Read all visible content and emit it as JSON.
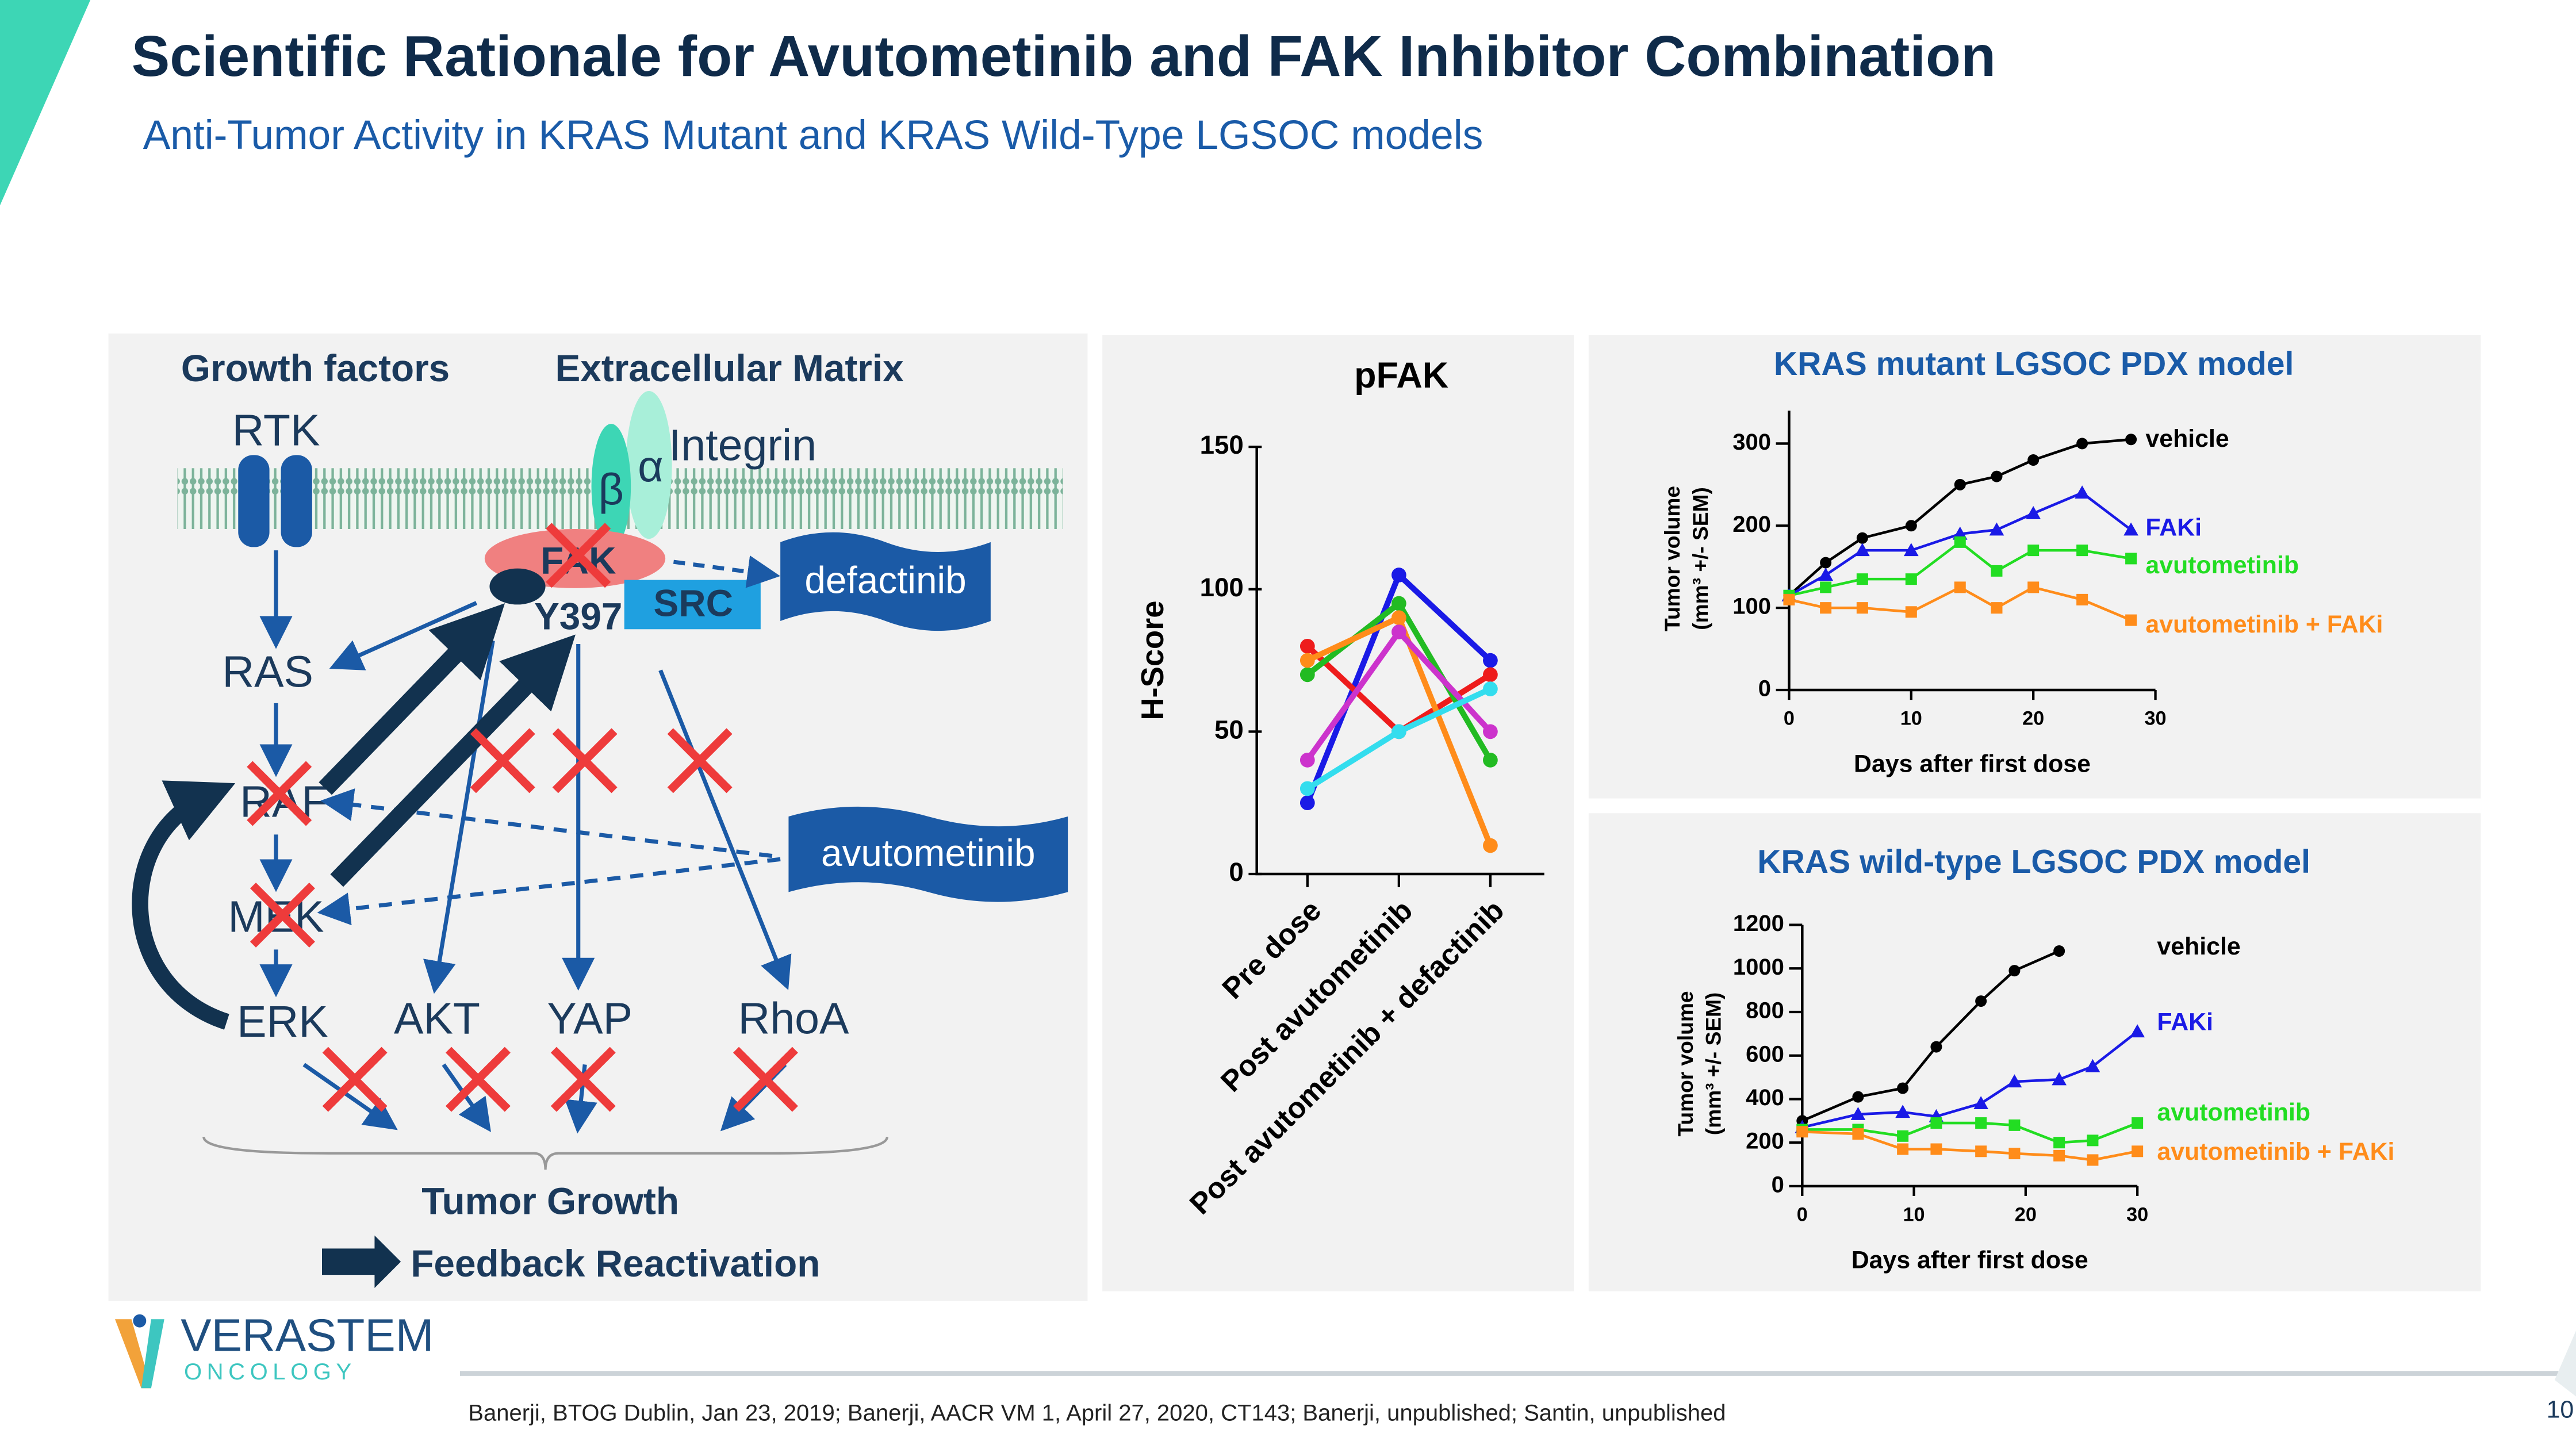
{
  "header": {
    "title": "Scientific Rationale for Avutometinib and FAK Inhibitor Combination",
    "subtitle": "Anti-Tumor Activity in KRAS Mutant and KRAS Wild-Type LGSOC models"
  },
  "diagram": {
    "growth_factors": "Growth factors",
    "extracellular_matrix": "Extracellular Matrix",
    "rtk": "RTK",
    "integrin": "Integrin",
    "beta": "β",
    "alpha": "α",
    "fak": "FAK",
    "y397": "Y397",
    "src": "SRC",
    "defactinib": "defactinib",
    "ras": "RAS",
    "raf": "RAF",
    "mek": "MEK",
    "erk": "ERK",
    "akt": "AKT",
    "yap": "YAP",
    "rhoa": "RhoA",
    "avutometinib": "avutometinib",
    "tumor_growth": "Tumor Growth",
    "feedback": "Feedback Reactivation"
  },
  "chart_data": [
    {
      "type": "line",
      "title": "pFAK",
      "categories": [
        "Pre dose",
        "Post avutometinib",
        "Post avutometinib + defactinib"
      ],
      "y_label": "H-Score",
      "ylim": [
        0,
        150
      ],
      "yticks": [
        0,
        50,
        100,
        150
      ],
      "series": [
        {
          "color": "#1a1ae6",
          "values": [
            25,
            105,
            75
          ]
        },
        {
          "color": "#ee1c1c",
          "values": [
            80,
            50,
            70
          ]
        },
        {
          "color": "#22bb22",
          "values": [
            70,
            95,
            40
          ]
        },
        {
          "color": "#ff8c1a",
          "values": [
            75,
            90,
            10
          ]
        },
        {
          "color": "#cc33cc",
          "values": [
            40,
            85,
            50
          ]
        },
        {
          "color": "#33ddee",
          "values": [
            30,
            50,
            65
          ]
        }
      ]
    },
    {
      "type": "line",
      "title": "KRAS mutant LGSOC PDX model",
      "x_label": "Days after first dose",
      "y_label": [
        "Tumor volume",
        "(mm³ +/- SEM)"
      ],
      "x": [
        0,
        3,
        6,
        10,
        14,
        17,
        20,
        24,
        28
      ],
      "xlim": [
        0,
        30
      ],
      "xticks": [
        0,
        10,
        20,
        30
      ],
      "ylim": [
        0,
        340
      ],
      "yticks": [
        0,
        100,
        200,
        300
      ],
      "series": [
        {
          "name": "vehicle",
          "color": "#000000",
          "values": [
            115,
            155,
            185,
            200,
            250,
            260,
            280,
            300,
            305
          ]
        },
        {
          "name": "FAKi",
          "color": "#1a1ae6",
          "values": [
            115,
            140,
            170,
            170,
            190,
            195,
            215,
            240,
            195
          ]
        },
        {
          "name": "avutometinib",
          "color": "#22dd22",
          "values": [
            115,
            125,
            135,
            135,
            180,
            145,
            170,
            170,
            160
          ]
        },
        {
          "name": "avutometinib + FAKi",
          "color": "#ff8c1a",
          "values": [
            110,
            100,
            100,
            95,
            125,
            100,
            125,
            110,
            85
          ]
        }
      ]
    },
    {
      "type": "line",
      "title": "KRAS wild-type LGSOC PDX model",
      "x_label": "Days after first dose",
      "y_label": [
        "Tumor volume",
        "(mm³ +/- SEM)"
      ],
      "x": [
        0,
        5,
        9,
        12,
        16,
        19,
        23,
        26,
        30
      ],
      "xlim": [
        0,
        30
      ],
      "xticks": [
        0,
        10,
        20,
        30
      ],
      "ylim": [
        0,
        1200
      ],
      "yticks": [
        0,
        200,
        400,
        600,
        800,
        1000,
        1200
      ],
      "series": [
        {
          "name": "vehicle",
          "color": "#000000",
          "values": [
            300,
            410,
            450,
            640,
            850,
            990,
            1080,
            null,
            null
          ]
        },
        {
          "name": "FAKi",
          "color": "#1a1ae6",
          "values": [
            270,
            330,
            340,
            320,
            380,
            480,
            490,
            550,
            710
          ]
        },
        {
          "name": "avutometinib",
          "color": "#22dd22",
          "values": [
            260,
            260,
            230,
            290,
            290,
            280,
            200,
            210,
            290
          ]
        },
        {
          "name": "avutometinib + FAKi",
          "color": "#ff8c1a",
          "values": [
            250,
            240,
            170,
            170,
            160,
            150,
            140,
            120,
            160
          ]
        }
      ]
    }
  ],
  "logo": {
    "name": "VERASTEM",
    "sub": "ONCOLOGY"
  },
  "footer": {
    "citation": "Banerji, BTOG Dublin, Jan 23, 2019; Banerji, AACR VM 1, April 27, 2020, CT143; Banerji, unpublished; Santin, unpublished",
    "page": "10"
  }
}
